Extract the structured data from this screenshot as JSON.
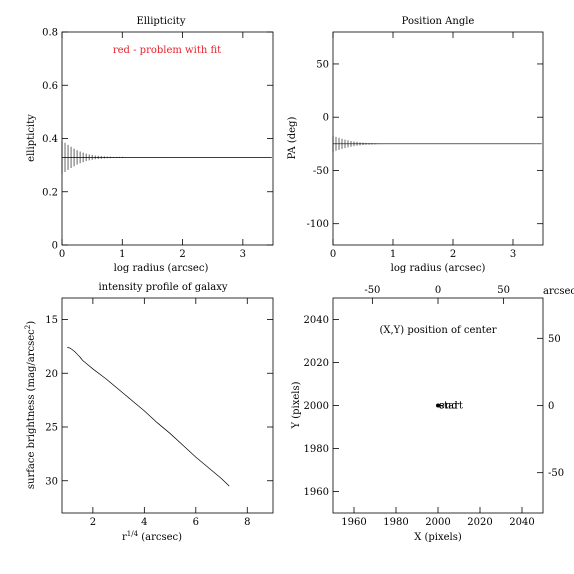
{
  "chart_data": [
    {
      "id": "ellipticity",
      "type": "line",
      "title": "Ellipticity",
      "xlabel": "log radius (arcsec)",
      "ylabel": "ellipticity",
      "xlim": [
        0,
        3.5
      ],
      "ylim": [
        0,
        0.8
      ],
      "xticks": [
        0,
        1,
        2,
        3
      ],
      "yticks": [
        0,
        0.2,
        0.4,
        0.6,
        0.8
      ],
      "annotation": "red - problem with fit",
      "annotation_color": "#e8222a",
      "series": [
        {
          "x": [
            0.0,
            3.48
          ],
          "y": [
            0.329,
            0.329
          ]
        }
      ],
      "errorbars": {
        "x": [
          0.0,
          0.05,
          0.1,
          0.15,
          0.2,
          0.25,
          0.3,
          0.35,
          0.4,
          0.45,
          0.5,
          0.55,
          0.6,
          0.65,
          0.7,
          0.75,
          0.8,
          0.85,
          0.9,
          0.95,
          1.0,
          1.05,
          1.1,
          1.15,
          1.2,
          1.25,
          1.3,
          1.35,
          1.4,
          1.45,
          1.5,
          1.55,
          1.6,
          1.65,
          1.7,
          1.75
        ],
        "y": [
          0.329,
          0.329,
          0.329,
          0.329,
          0.329,
          0.329,
          0.329,
          0.329,
          0.329,
          0.329,
          0.329,
          0.329,
          0.329,
          0.329,
          0.329,
          0.329,
          0.329,
          0.329,
          0.329,
          0.329,
          0.329,
          0.329,
          0.329,
          0.329,
          0.329,
          0.329,
          0.329,
          0.329,
          0.329,
          0.329,
          0.329,
          0.329,
          0.329,
          0.329,
          0.329,
          0.329
        ],
        "err": [
          0.062,
          0.055,
          0.047,
          0.04,
          0.033,
          0.027,
          0.022,
          0.018,
          0.014,
          0.011,
          0.009,
          0.007,
          0.006,
          0.005,
          0.004,
          0.003,
          0.003,
          0.002,
          0.002,
          0.002,
          0.002,
          0.001,
          0.001,
          0.001,
          0.001,
          0.001,
          0.001,
          0.001,
          0.001,
          0.001,
          0.001,
          0.001,
          0.001,
          0.001,
          0.001,
          0.001
        ]
      }
    },
    {
      "id": "position-angle",
      "type": "line",
      "title": "Position Angle",
      "xlabel": "log radius (arcsec)",
      "ylabel": "PA (deg)",
      "xlim": [
        0,
        3.5
      ],
      "ylim": [
        -120,
        80
      ],
      "xticks": [
        0,
        1,
        2,
        3
      ],
      "yticks": [
        -100,
        -50,
        0,
        50
      ],
      "series": [
        {
          "x": [
            0.0,
            3.48
          ],
          "y": [
            -25,
            -25
          ]
        }
      ],
      "errorbars": {
        "x": [
          0.0,
          0.05,
          0.1,
          0.15,
          0.2,
          0.25,
          0.3,
          0.35,
          0.4,
          0.45,
          0.5,
          0.55,
          0.6,
          0.65,
          0.7,
          0.75,
          0.8,
          0.85,
          0.9,
          0.95,
          1.0,
          1.05,
          1.1,
          1.15,
          1.2,
          1.25,
          1.3,
          1.35,
          1.4,
          1.45,
          1.5,
          1.55,
          1.6,
          1.65,
          1.7,
          1.75
        ],
        "y": [
          -25,
          -25,
          -25,
          -25,
          -25,
          -25,
          -25,
          -25,
          -25,
          -25,
          -25,
          -25,
          -25,
          -25,
          -25,
          -25,
          -25,
          -25,
          -25,
          -25,
          -25,
          -25,
          -25,
          -25,
          -25,
          -25,
          -25,
          -25,
          -25,
          -25,
          -25,
          -25,
          -25,
          -25,
          -25,
          -25
        ],
        "err": [
          7.5,
          6.5,
          5.7,
          4.8,
          4.0,
          3.3,
          2.7,
          2.2,
          1.8,
          1.4,
          1.1,
          0.9,
          0.7,
          0.6,
          0.5,
          0.4,
          0.3,
          0.3,
          0.2,
          0.2,
          0.2,
          0.2,
          0.1,
          0.1,
          0.1,
          0.1,
          0.1,
          0.1,
          0.1,
          0.1,
          0.1,
          0.1,
          0.1,
          0.1,
          0.1,
          0.1
        ]
      }
    },
    {
      "id": "intensity-profile",
      "type": "line",
      "title": "intensity profile of galaxy",
      "xlabel": "r^1/4 (arcsec)",
      "ylabel": "surface brightness (mag/arcsec^2)",
      "xlim": [
        0.8,
        9.0
      ],
      "ylim": [
        33,
        13
      ],
      "xticks": [
        2,
        4,
        6,
        8
      ],
      "yticks": [
        15,
        20,
        25,
        30
      ],
      "series": [
        {
          "x": [
            1.0,
            1.1,
            1.2,
            1.3,
            1.4,
            1.5,
            1.6,
            1.8,
            2.0,
            2.5,
            3.0,
            3.5,
            4.0,
            4.5,
            5.0,
            5.5,
            6.0,
            6.5,
            7.0,
            7.3
          ],
          "y": [
            17.6,
            17.65,
            17.8,
            18.0,
            18.25,
            18.5,
            18.8,
            19.2,
            19.6,
            20.5,
            21.5,
            22.5,
            23.5,
            24.6,
            25.6,
            26.7,
            27.8,
            28.8,
            29.8,
            30.5
          ]
        }
      ]
    },
    {
      "id": "center-position",
      "type": "scatter",
      "title": "",
      "xlabel": "X (pixels)",
      "ylabel": "Y (pixels)",
      "xlim": [
        1950,
        2050
      ],
      "ylim": [
        1950,
        2050
      ],
      "xticks": [
        1960,
        1980,
        2000,
        2020,
        2040
      ],
      "yticks": [
        1960,
        1980,
        2000,
        2020,
        2040
      ],
      "top_ticks": [
        -50,
        0,
        50
      ],
      "right_ticks": [
        -50,
        0,
        50
      ],
      "top_axis_label": "arcsec",
      "annotation": "(X,Y) position of center",
      "points": [
        {
          "x": 2000,
          "y": 2000
        }
      ],
      "point_labels": [
        "start",
        "end"
      ]
    }
  ]
}
